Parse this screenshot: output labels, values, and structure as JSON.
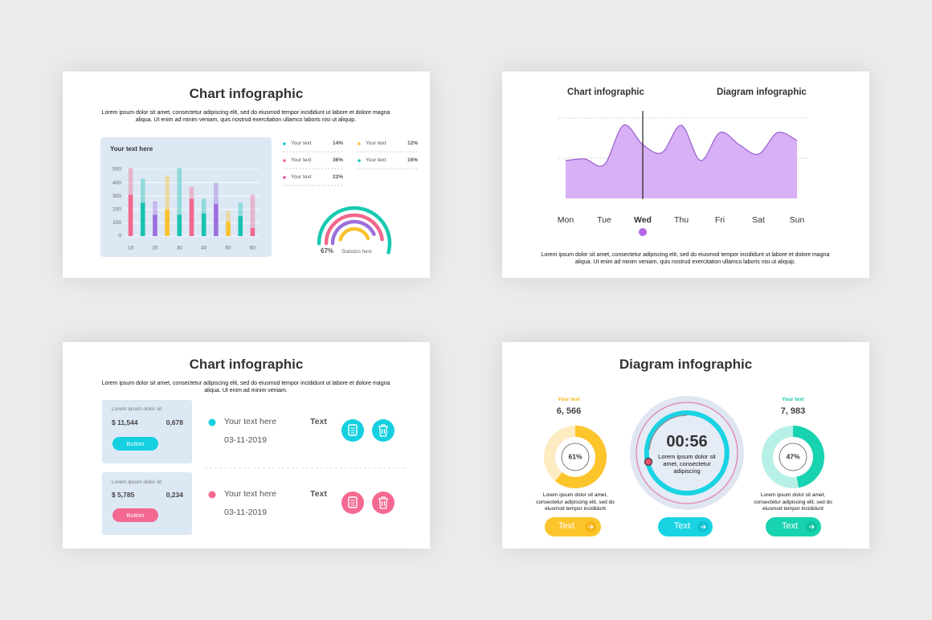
{
  "slides": [
    {
      "title": "Chart infographic",
      "text": "Lorem ipsum dolor sit amet, consectetur adipiscing elit, sed do eiusmod tempor incididunt ut labore et dolore magna aliqua. Ut enim ad minim veniam, quis nostrud exercitation ullamco laboris nisi ut aliquip.",
      "legend": [
        {
          "label": "Your text",
          "value": "14%",
          "color": "#17c9c9"
        },
        {
          "label": "Your text",
          "value": "36%",
          "color": "#f0628e"
        },
        {
          "label": "Your text",
          "value": "22%",
          "color": "#e0529a"
        },
        {
          "label": "Your text",
          "value": "12%",
          "color": "#f9c22e"
        },
        {
          "label": "Your text",
          "value": "16%",
          "color": "#17c9b2"
        }
      ],
      "gauge_value": "67%",
      "gauge_label": "Statistics here"
    },
    {
      "left_title": "Chart infographic",
      "right_title": "Diagram infographic",
      "text": "Lorem ipsum dolor sit amet, consectetur adipiscing elit, sed do eiusmod tempor incididunt ut labore et dolore magna aliqua. Ut enim ad minim veniam, quis nostrud exercitation ullamco laboris nisi ut aliquip."
    },
    {
      "title": "Chart infographic",
      "text": "Lorem ipsum dolor sit amet, consectetur adipiscing elit, sed do eiusmod tempor incididunt ut labore et dolore magna aliqua. Ut enim ad minim veniam.",
      "cards": [
        {
          "caption": "Lorem ipsum dolor sit",
          "amount": "$ 11,544",
          "count": "0,678",
          "button": "Button"
        },
        {
          "caption": "Lorem ipsum dolor sit",
          "amount": "$ 5,785",
          "count": "0,234",
          "button": "Button"
        }
      ],
      "rows": [
        {
          "label": "Your text here",
          "date": "03-11-2019",
          "action": "Text"
        },
        {
          "label": "Your text here",
          "date": "03-11-2019",
          "action": "Text"
        }
      ]
    },
    {
      "title": "Diagram infographic",
      "left": {
        "label": "Your text",
        "amount": "6, 566",
        "text": "Lorem ipsum dolor sit amet, consectetur adipiscing elit, sed do eiusmod tempor incididunt",
        "button": "Text"
      },
      "timer": {
        "time": "00:56",
        "text": "Lorem ipsum dolor sit amet, consectetur adipiscing",
        "button": "Text"
      },
      "right": {
        "label": "Your text",
        "amount": "7, 983",
        "text": "Lorem ipsum dolor sit amet, consectetur adipiscing elit, sed do eiusmod tempor incididunt",
        "button": "Text"
      }
    }
  ],
  "chart_data": [
    {
      "type": "bar",
      "title": "Your text here",
      "categories": [
        "10",
        null,
        "20",
        null,
        "30",
        null,
        "40",
        null,
        "50",
        null,
        "60"
      ],
      "series": [
        {
          "values": [
            310,
            250,
            160,
            200,
            160,
            280,
            170,
            240,
            110,
            150,
            60
          ]
        },
        {
          "values": [
            200,
            180,
            100,
            250,
            350,
            90,
            110,
            160,
            80,
            100,
            250
          ],
          "opacity": 0.4
        }
      ],
      "colors": [
        "#f2678e",
        "#19c3b0",
        "#9b6fdc",
        "#f9c22e",
        "#19c3b0",
        "#f2678e",
        "#19c3b0",
        "#9b6fdc",
        "#f9c22e",
        "#19c3b0",
        "#f2678e"
      ],
      "stacked": true,
      "ylim": [
        0,
        500
      ],
      "yticks": [
        0,
        100,
        200,
        300,
        400,
        500
      ],
      "grid": true
    },
    {
      "type": "area",
      "categories": [
        "Mon",
        null,
        "Tue",
        null,
        "Wed",
        null,
        "Thu",
        null,
        "Fri",
        null,
        "Sat",
        null,
        "Sun"
      ],
      "values": [
        47,
        49,
        42,
        91,
        67,
        57,
        91,
        47,
        82,
        67,
        55,
        82,
        72
      ],
      "ylim": [
        0,
        100
      ],
      "color": "#d7b0f6",
      "line_color": "#9b5fd0",
      "highlight_index": 4
    },
    {
      "type": "donut",
      "values": [
        61
      ],
      "value_labels": [
        "61%"
      ],
      "color": "#fcc52c",
      "track_color": "#fdebc2"
    },
    {
      "type": "donut",
      "values": [
        47
      ],
      "value_labels": [
        "47%"
      ],
      "color": "#18d3b0",
      "track_color": "#b7f0e6"
    }
  ]
}
